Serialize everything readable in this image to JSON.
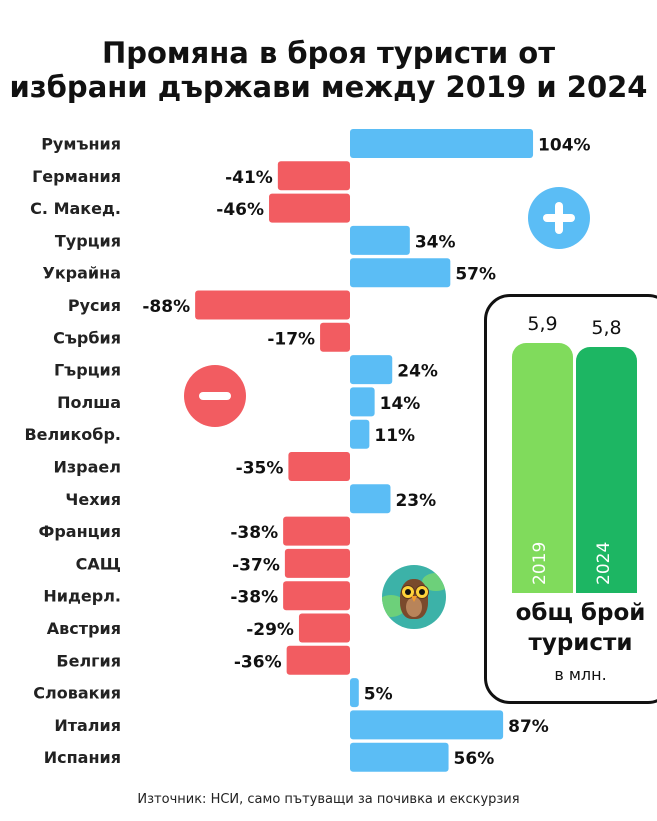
{
  "title_line1": "Промяна в броя туристи от",
  "title_line2": "избрани държави между 2019 и 2024",
  "chart_data": {
    "type": "bar",
    "orientation": "horizontal",
    "categories": [
      "Румъния",
      "Германия",
      "С. Макед.",
      "Турция",
      "Украйна",
      "Русия",
      "Сърбия",
      "Гърция",
      "Полша",
      "Великобр.",
      "Израел",
      "Чехия",
      "Франция",
      "САЩ",
      "Нидерл.",
      "Австрия",
      "Белгия",
      "Словакия",
      "Италия",
      "Испания"
    ],
    "values": [
      104,
      -41,
      -46,
      34,
      57,
      -88,
      -17,
      24,
      14,
      11,
      -35,
      23,
      -38,
      -37,
      -38,
      -29,
      -36,
      5,
      87,
      56
    ],
    "value_labels": [
      "104%",
      "-41%",
      "-46%",
      "34%",
      "57%",
      "-88%",
      "-17%",
      "24%",
      "14%",
      "11%",
      "-35%",
      "23%",
      "-38%",
      "-37%",
      "-38%",
      "-29%",
      "-36%",
      "5%",
      "87%",
      "56%"
    ],
    "unit": "%",
    "colors": {
      "positive": "#5bbdf5",
      "negative": "#f25c61"
    },
    "xlim": [
      -88,
      104
    ]
  },
  "totals": {
    "values": [
      5.9,
      5.8
    ],
    "value_labels": [
      "5,9",
      "5,8"
    ],
    "years": [
      "2019",
      "2024"
    ],
    "colors": [
      "#80db5c",
      "#1db663"
    ],
    "caption_line1": "общ брой",
    "caption_line2": "туристи",
    "unit": "в млн."
  },
  "icons": {
    "plus": "plus-circle-icon",
    "minus": "minus-circle-icon",
    "owl": "owl-globe-icon"
  },
  "source": "Източник: НСИ, само пътуващи за почивка и екскурзия"
}
